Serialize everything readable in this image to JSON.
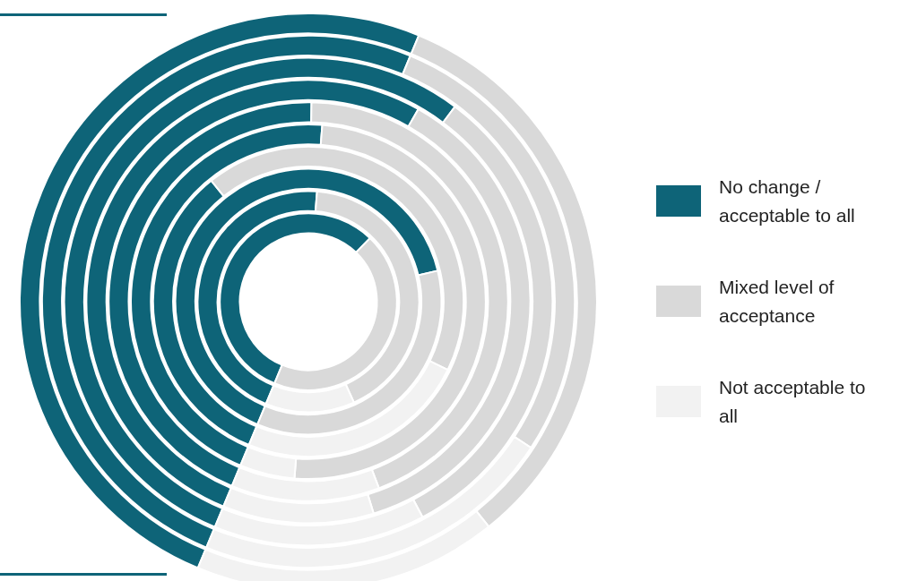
{
  "chart_data": {
    "type": "donut",
    "categories": [
      "No change / acceptable to all",
      "Mixed level of acceptance",
      "Not acceptable to all"
    ],
    "colors": [
      "#0e6478",
      "#d9d9d9",
      "#f2f2f2"
    ],
    "series": [
      {
        "values": [
          56,
          44,
          0
        ]
      },
      {
        "values": [
          45,
          42,
          13
        ]
      },
      {
        "values": [
          65,
          35,
          0
        ]
      },
      {
        "values": [
          33,
          43,
          24
        ]
      },
      {
        "values": [
          45,
          50,
          5
        ]
      },
      {
        "values": [
          44,
          44,
          12
        ]
      },
      {
        "values": [
          52,
          37,
          11
        ]
      },
      {
        "values": [
          54,
          32,
          14
        ]
      },
      {
        "values": [
          50,
          28,
          22
        ]
      },
      {
        "values": [
          50,
          33,
          17
        ]
      }
    ],
    "legend": "right"
  }
}
